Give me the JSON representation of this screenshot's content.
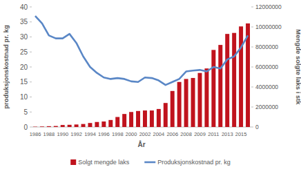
{
  "chart_data": {
    "type": "bar",
    "xlabel": "År",
    "ylabel": "produksjonskostnad pr. kg",
    "y2label": "Mengde solgte laks i stk",
    "categories": [
      "1986",
      null,
      "1988",
      null,
      "1990",
      null,
      "1992",
      null,
      "1994",
      null,
      "1996",
      null,
      "1998",
      null,
      "2000",
      null,
      "2002",
      null,
      "2004",
      null,
      "2006",
      null,
      "2008",
      null,
      "2009",
      null,
      "2011",
      null,
      "2013",
      null,
      "2015",
      null
    ],
    "series": [
      {
        "name": "Solgt mengde laks",
        "type": "bar",
        "axis": "y2",
        "color": "#c0131d",
        "values": [
          30000,
          50000,
          80000,
          100000,
          200000,
          220000,
          250000,
          300000,
          400000,
          500000,
          550000,
          700000,
          1000000,
          1300000,
          1500000,
          1600000,
          1650000,
          1650000,
          1800000,
          2400000,
          3600000,
          4500000,
          4800000,
          4900000,
          5400000,
          5850000,
          7700000,
          8200000,
          9300000,
          9400000,
          10050000,
          10350000
        ]
      },
      {
        "name": "Produksjonskostnad pr. kg",
        "type": "line",
        "color": "#5a87c6",
        "values": [
          37,
          34.5,
          30.5,
          29.5,
          29.5,
          31,
          28,
          23.5,
          20,
          18,
          16.5,
          16,
          16.3,
          16,
          15.2,
          15,
          16.5,
          16.3,
          15.5,
          14,
          15,
          16,
          18.5,
          18.8,
          19,
          18.5,
          20,
          19.5,
          22.5,
          23.5,
          26.5,
          30.5
        ]
      }
    ],
    "ylim": [
      0,
      40
    ],
    "yticks": [
      0,
      5,
      10,
      15,
      20,
      25,
      30,
      35,
      40
    ],
    "y2lim": [
      0,
      12000000
    ],
    "y2ticks": [
      0,
      2000000,
      4000000,
      6000000,
      8000000,
      10000000,
      12000000
    ],
    "grid": false,
    "legend": "bottom"
  }
}
